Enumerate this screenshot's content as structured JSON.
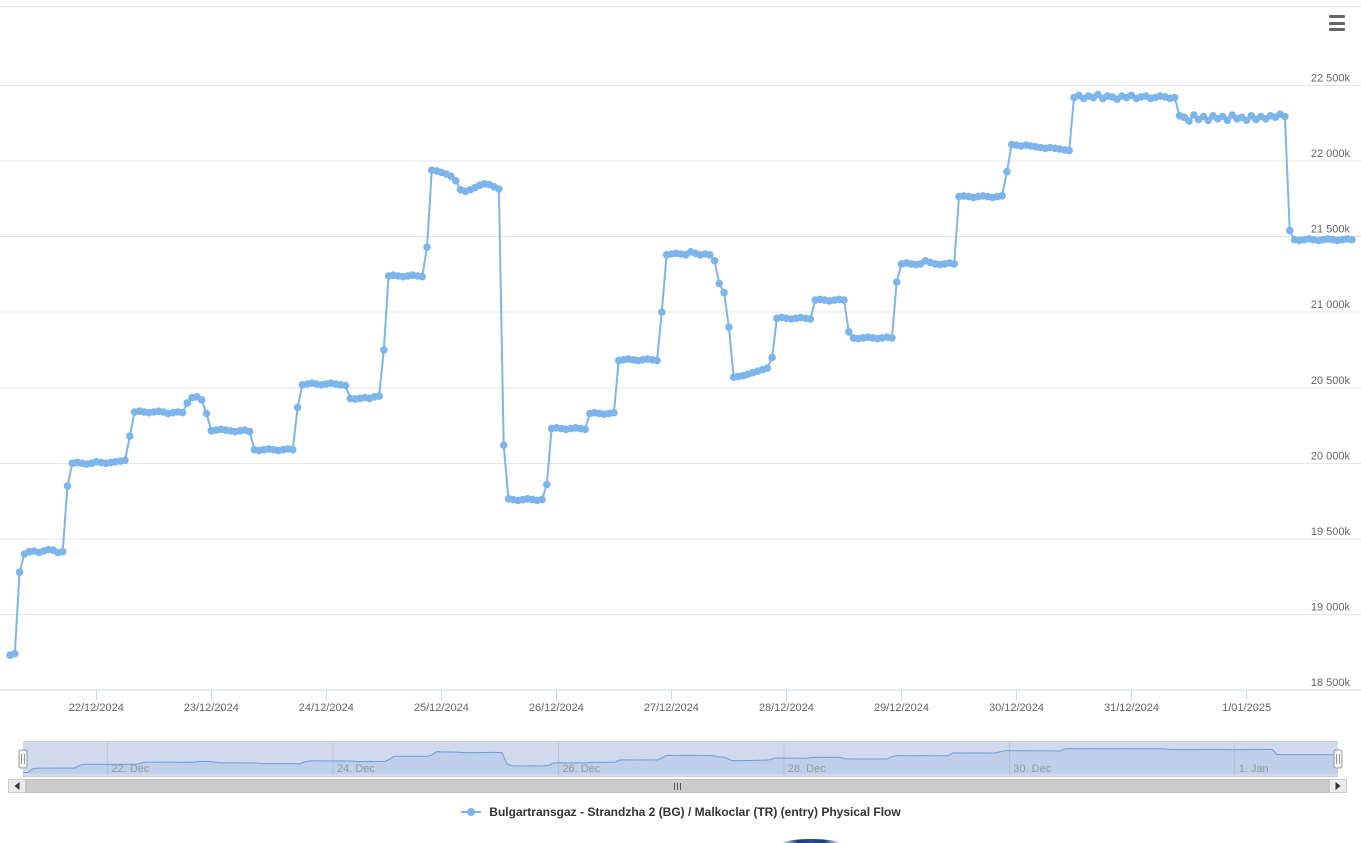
{
  "chart_data": {
    "type": "line",
    "title": "",
    "grid": true,
    "legend_position": "bottom-center",
    "series": [
      {
        "name": "Bulgartransgaz - Strandzha 2 (BG) / Malkoclar (TR) (entry) Physical Flow",
        "color": "#7cb5ec",
        "marker": "circle",
        "unit_suffix": "k",
        "values": [
          18730,
          18740,
          19280,
          19400,
          19415,
          19420,
          19410,
          19420,
          19430,
          19425,
          19410,
          19415,
          19850,
          20000,
          20005,
          20000,
          19995,
          20000,
          20010,
          20005,
          20000,
          20005,
          20010,
          20015,
          20020,
          20180,
          20340,
          20345,
          20340,
          20335,
          20340,
          20345,
          20340,
          20330,
          20335,
          20340,
          20335,
          20400,
          20435,
          20440,
          20420,
          20330,
          20215,
          20220,
          20225,
          20220,
          20215,
          20210,
          20215,
          20220,
          20210,
          20090,
          20085,
          20090,
          20095,
          20090,
          20085,
          20090,
          20095,
          20090,
          20370,
          20520,
          20525,
          20530,
          20525,
          20520,
          20525,
          20530,
          20525,
          20520,
          20515,
          20430,
          20425,
          20430,
          20435,
          20430,
          20440,
          20445,
          20750,
          21240,
          21245,
          21240,
          21235,
          21240,
          21245,
          21240,
          21235,
          21430,
          21940,
          21935,
          21925,
          21915,
          21900,
          21870,
          21810,
          21800,
          21810,
          21825,
          21840,
          21850,
          21845,
          21830,
          21815,
          20120,
          19765,
          19760,
          19755,
          19760,
          19765,
          19760,
          19755,
          19760,
          19860,
          20230,
          20235,
          20230,
          20225,
          20230,
          20235,
          20230,
          20225,
          20330,
          20335,
          20330,
          20325,
          20330,
          20335,
          20680,
          20685,
          20690,
          20685,
          20680,
          20685,
          20690,
          20685,
          20680,
          21000,
          21380,
          21385,
          21390,
          21385,
          21380,
          21400,
          21390,
          21380,
          21385,
          21380,
          21340,
          21190,
          21130,
          20900,
          20570,
          20575,
          20580,
          20590,
          20600,
          20610,
          20620,
          20630,
          20700,
          20960,
          20965,
          20960,
          20955,
          20960,
          20965,
          20960,
          20955,
          21080,
          21085,
          21080,
          21075,
          21080,
          21085,
          21080,
          20870,
          20830,
          20825,
          20830,
          20835,
          20830,
          20825,
          20830,
          20835,
          20830,
          21200,
          21320,
          21325,
          21320,
          21315,
          21320,
          21340,
          21330,
          21320,
          21315,
          21320,
          21325,
          21320,
          21765,
          21770,
          21765,
          21760,
          21765,
          21770,
          21765,
          21760,
          21765,
          21770,
          21930,
          22110,
          22105,
          22100,
          22105,
          22100,
          22095,
          22090,
          22085,
          22090,
          22085,
          22080,
          22075,
          22070,
          22420,
          22435,
          22415,
          22430,
          22420,
          22440,
          22415,
          22430,
          22425,
          22410,
          22430,
          22420,
          22435,
          22415,
          22425,
          22430,
          22415,
          22420,
          22430,
          22425,
          22415,
          22420,
          22300,
          22290,
          22265,
          22305,
          22275,
          22295,
          22270,
          22300,
          22280,
          22295,
          22270,
          22305,
          22280,
          22290,
          22270,
          22300,
          22275,
          22295,
          22280,
          22300,
          22290,
          22310,
          22295,
          21540,
          21480,
          21475,
          21480,
          21485,
          21480,
          21475,
          21480,
          21485,
          21480,
          21475,
          21480,
          21485,
          21480
        ]
      }
    ],
    "y_axis": {
      "min": 18500,
      "max": 23000,
      "tick_interval": 500,
      "tick_labels": [
        "18 500k",
        "19 000k",
        "19 500k",
        "20 000k",
        "20 500k",
        "21 000k",
        "21 500k",
        "22 000k",
        "22 500k"
      ]
    },
    "x_axis": {
      "tick_labels": [
        "22/12/2024",
        "23/12/2024",
        "24/12/2024",
        "25/12/2024",
        "26/12/2024",
        "27/12/2024",
        "28/12/2024",
        "29/12/2024",
        "30/12/2024",
        "31/12/2024",
        "1/01/2025"
      ],
      "first_tick_point_index": 18,
      "points_per_tick": 24
    },
    "navigator": {
      "tick_labels": [
        "22. Dec",
        "24. Dec",
        "26. Dec",
        "28. Dec",
        "30. Dec",
        "1. Jan"
      ],
      "first_tick_point_index": 18,
      "points_per_tick": 48
    }
  },
  "legend": {
    "label": "Bulgartransgaz - Strandzha 2 (BG) / Malkoclar (TR) (entry) Physical Flow"
  },
  "colors": {
    "series": "#7cb5ec",
    "gridline": "#e6e6e6",
    "axis_line": "#ccd6eb",
    "axis_label": "#666666",
    "navigator_label": "#999999",
    "navigator_mask": "rgba(102,133,194,0.3)",
    "navigator_area_fill": "rgba(124,181,236,0.2)",
    "navigator_line": "#6d9dd9",
    "navigator_outline": "#cccccc",
    "scrollbar_thumb": "#cccccc",
    "menu_icon": "#666666",
    "legend_text": "#333333",
    "bottom_button": "#1d3c78"
  }
}
